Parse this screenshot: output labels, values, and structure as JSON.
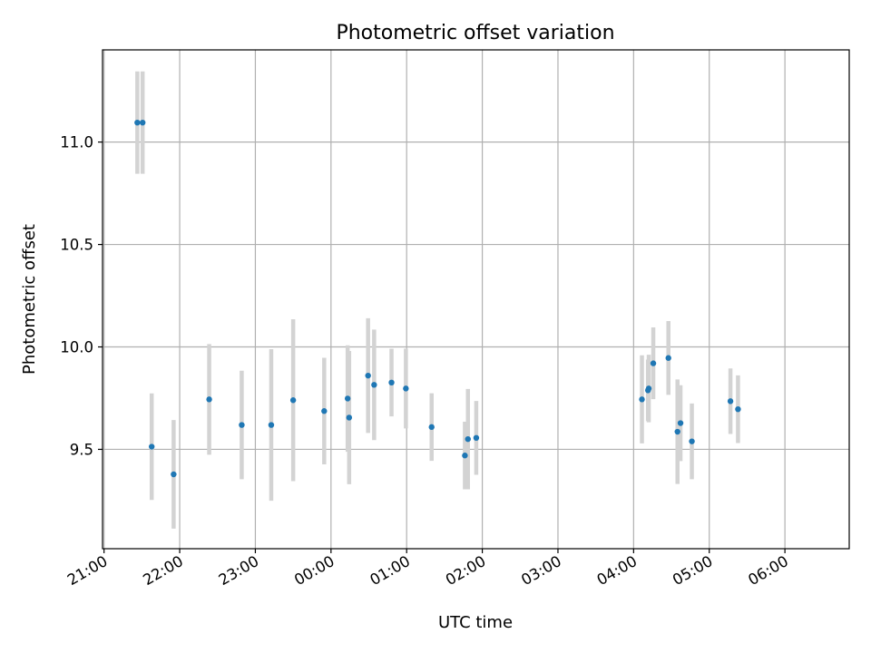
{
  "chart_data": {
    "type": "scatter",
    "title": "Photometric offset variation",
    "xlabel": "UTC time",
    "ylabel": "Photometric offset",
    "grid": true,
    "x_unit": "hours since 21:00 UTC",
    "xlim": [
      -0.02,
      9.85
    ],
    "ylim": [
      9.015,
      11.45
    ],
    "x_ticks": [
      {
        "value": 0,
        "label": "21:00"
      },
      {
        "value": 1,
        "label": "22:00"
      },
      {
        "value": 2,
        "label": "23:00"
      },
      {
        "value": 3,
        "label": "00:00"
      },
      {
        "value": 4,
        "label": "01:00"
      },
      {
        "value": 5,
        "label": "02:00"
      },
      {
        "value": 6,
        "label": "03:00"
      },
      {
        "value": 7,
        "label": "04:00"
      },
      {
        "value": 8,
        "label": "05:00"
      },
      {
        "value": 9,
        "label": "06:00"
      }
    ],
    "y_ticks": [
      {
        "value": 9.5,
        "label": "9.5"
      },
      {
        "value": 10.0,
        "label": "10.0"
      },
      {
        "value": 10.5,
        "label": "10.5"
      },
      {
        "value": 11.0,
        "label": "11.0"
      }
    ],
    "series": [
      {
        "name": "offset",
        "color": "#1f77b4",
        "errorbar_color": "#d3d3d3",
        "points": [
          {
            "x": 0.44,
            "y": 11.095,
            "err": 0.25
          },
          {
            "x": 0.51,
            "y": 11.095,
            "err": 0.25
          },
          {
            "x": 0.63,
            "y": 9.513,
            "err": 0.26
          },
          {
            "x": 0.92,
            "y": 9.378,
            "err": 0.265
          },
          {
            "x": 1.39,
            "y": 9.744,
            "err": 0.27
          },
          {
            "x": 1.82,
            "y": 9.619,
            "err": 0.265
          },
          {
            "x": 2.21,
            "y": 9.619,
            "err": 0.37
          },
          {
            "x": 2.5,
            "y": 9.74,
            "err": 0.395
          },
          {
            "x": 2.91,
            "y": 9.687,
            "err": 0.26
          },
          {
            "x": 3.22,
            "y": 9.748,
            "err": 0.26
          },
          {
            "x": 3.24,
            "y": 9.655,
            "err": 0.325
          },
          {
            "x": 3.49,
            "y": 9.86,
            "err": 0.28
          },
          {
            "x": 3.57,
            "y": 9.815,
            "err": 0.27
          },
          {
            "x": 3.8,
            "y": 9.826,
            "err": 0.165
          },
          {
            "x": 3.99,
            "y": 9.797,
            "err": 0.195
          },
          {
            "x": 4.33,
            "y": 9.609,
            "err": 0.165
          },
          {
            "x": 4.77,
            "y": 9.47,
            "err": 0.165
          },
          {
            "x": 4.81,
            "y": 9.55,
            "err": 0.245
          },
          {
            "x": 4.92,
            "y": 9.556,
            "err": 0.18
          },
          {
            "x": 7.11,
            "y": 9.744,
            "err": 0.215
          },
          {
            "x": 7.19,
            "y": 9.788,
            "err": 0.15
          },
          {
            "x": 7.2,
            "y": 9.797,
            "err": 0.165
          },
          {
            "x": 7.26,
            "y": 9.92,
            "err": 0.175
          },
          {
            "x": 7.46,
            "y": 9.946,
            "err": 0.18
          },
          {
            "x": 7.58,
            "y": 9.586,
            "err": 0.255
          },
          {
            "x": 7.62,
            "y": 9.628,
            "err": 0.185
          },
          {
            "x": 7.77,
            "y": 9.539,
            "err": 0.185
          },
          {
            "x": 8.28,
            "y": 9.735,
            "err": 0.16
          },
          {
            "x": 8.38,
            "y": 9.696,
            "err": 0.165
          }
        ]
      }
    ]
  }
}
